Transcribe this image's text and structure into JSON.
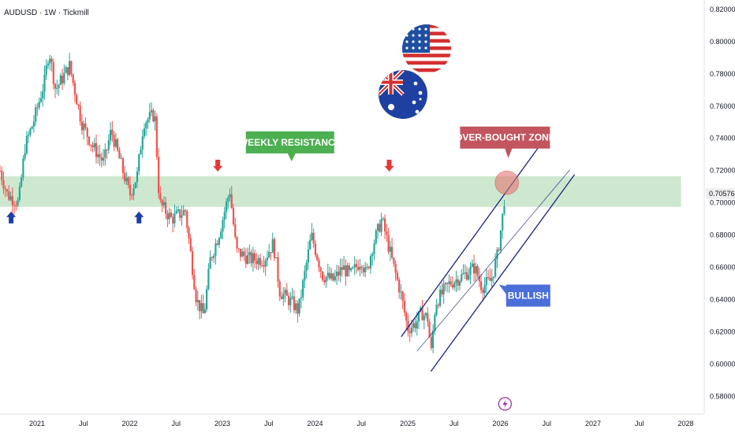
{
  "header": {
    "symbol_title": "AUDUSD · 1W · Tickmill"
  },
  "colors": {
    "up": "#26a69a",
    "down": "#ef5350",
    "zone_fill": "#a5d6a7",
    "zone_text": "#ffffff",
    "channel_line": "#1a237e",
    "resistance_callout": "#4caf50",
    "overbought_callout": "#c2555f",
    "overbought_circle": "#e57373",
    "bullish_callout": "#4a6fd8",
    "arrow_up": "#1a3fa8",
    "arrow_down": "#e53935",
    "price_badge": "#eeeeee",
    "icon_purple": "#9c27b0"
  },
  "icons": {
    "flags": [
      "us-flag-icon",
      "australia-flag-icon"
    ],
    "event": "lightning-event-icon",
    "up_arrow": "blue-up-arrow-icon",
    "down_arrow": "red-down-arrow-icon"
  },
  "chart_data": {
    "type": "candlestick",
    "timeframe": "1W",
    "title": "AUDUSD · 1W · Tickmill",
    "x_axis": {
      "range": [
        2020.6,
        2028.2
      ],
      "tick_labels": [
        {
          "label": "2021",
          "t": 2021.0
        },
        {
          "label": "Jul",
          "t": 2021.5
        },
        {
          "label": "2022",
          "t": 2022.0
        },
        {
          "label": "Jul",
          "t": 2022.5
        },
        {
          "label": "2023",
          "t": 2023.0
        },
        {
          "label": "Jul",
          "t": 2023.5
        },
        {
          "label": "2024",
          "t": 2024.0
        },
        {
          "label": "Jul",
          "t": 2024.5
        },
        {
          "label": "2025",
          "t": 2025.0
        },
        {
          "label": "Jul",
          "t": 2025.5
        },
        {
          "label": "2026",
          "t": 2026.0
        },
        {
          "label": "Jul",
          "t": 2026.5
        },
        {
          "label": "2027",
          "t": 2027.0
        },
        {
          "label": "Jul",
          "t": 2027.5
        },
        {
          "label": "2028",
          "t": 2028.0
        }
      ]
    },
    "y_axis": {
      "range": [
        0.569,
        0.8258
      ],
      "tick_labels": [
        "0.58000",
        "0.60000",
        "0.62000",
        "0.64000",
        "0.66000",
        "0.68000",
        "0.70000",
        "0.72000",
        "0.74000",
        "0.76000",
        "0.78000",
        "0.80000",
        "0.82000"
      ],
      "tick_values": [
        0.58,
        0.6,
        0.62,
        0.64,
        0.66,
        0.68,
        0.7,
        0.72,
        0.74,
        0.76,
        0.78,
        0.8,
        0.82
      ],
      "last_price_label": "0.70576",
      "last_price": 0.70576
    },
    "path_anchors": [
      {
        "t": 2020.6,
        "p": 0.72
      },
      {
        "t": 2020.68,
        "p": 0.705
      },
      {
        "t": 2020.8,
        "p": 0.7
      },
      {
        "t": 2020.87,
        "p": 0.735
      },
      {
        "t": 2020.96,
        "p": 0.75
      },
      {
        "t": 2021.08,
        "p": 0.775
      },
      {
        "t": 2021.13,
        "p": 0.795
      },
      {
        "t": 2021.2,
        "p": 0.77
      },
      {
        "t": 2021.35,
        "p": 0.785
      },
      {
        "t": 2021.48,
        "p": 0.75
      },
      {
        "t": 2021.6,
        "p": 0.735
      },
      {
        "t": 2021.72,
        "p": 0.725
      },
      {
        "t": 2021.8,
        "p": 0.745
      },
      {
        "t": 2021.95,
        "p": 0.715
      },
      {
        "t": 2022.0,
        "p": 0.705
      },
      {
        "t": 2022.08,
        "p": 0.717
      },
      {
        "t": 2022.15,
        "p": 0.75
      },
      {
        "t": 2022.27,
        "p": 0.755
      },
      {
        "t": 2022.32,
        "p": 0.7
      },
      {
        "t": 2022.45,
        "p": 0.69
      },
      {
        "t": 2022.6,
        "p": 0.695
      },
      {
        "t": 2022.72,
        "p": 0.64
      },
      {
        "t": 2022.8,
        "p": 0.63
      },
      {
        "t": 2022.87,
        "p": 0.665
      },
      {
        "t": 2022.96,
        "p": 0.68
      },
      {
        "t": 2023.08,
        "p": 0.708
      },
      {
        "t": 2023.15,
        "p": 0.67
      },
      {
        "t": 2023.3,
        "p": 0.665
      },
      {
        "t": 2023.45,
        "p": 0.665
      },
      {
        "t": 2023.55,
        "p": 0.675
      },
      {
        "t": 2023.62,
        "p": 0.645
      },
      {
        "t": 2023.75,
        "p": 0.638
      },
      {
        "t": 2023.82,
        "p": 0.633
      },
      {
        "t": 2023.96,
        "p": 0.68
      },
      {
        "t": 2024.08,
        "p": 0.655
      },
      {
        "t": 2024.2,
        "p": 0.652
      },
      {
        "t": 2024.3,
        "p": 0.66
      },
      {
        "t": 2024.38,
        "p": 0.655
      },
      {
        "t": 2024.5,
        "p": 0.665
      },
      {
        "t": 2024.55,
        "p": 0.655
      },
      {
        "t": 2024.62,
        "p": 0.673
      },
      {
        "t": 2024.72,
        "p": 0.69
      },
      {
        "t": 2024.85,
        "p": 0.66
      },
      {
        "t": 2024.92,
        "p": 0.645
      },
      {
        "t": 2025.0,
        "p": 0.622
      },
      {
        "t": 2025.08,
        "p": 0.625
      },
      {
        "t": 2025.15,
        "p": 0.632
      },
      {
        "t": 2025.22,
        "p": 0.628
      },
      {
        "t": 2025.25,
        "p": 0.605
      },
      {
        "t": 2025.3,
        "p": 0.638
      },
      {
        "t": 2025.45,
        "p": 0.65
      },
      {
        "t": 2025.6,
        "p": 0.655
      },
      {
        "t": 2025.72,
        "p": 0.66
      },
      {
        "t": 2025.8,
        "p": 0.648
      },
      {
        "t": 2025.9,
        "p": 0.652
      },
      {
        "t": 2025.97,
        "p": 0.668
      },
      {
        "t": 2026.02,
        "p": 0.69
      },
      {
        "t": 2026.05,
        "p": 0.706
      }
    ],
    "resistance_zone": {
      "label": "WEEKLY RESISTANCE",
      "price_low": 0.6975,
      "price_high": 0.7165,
      "t_end": 2027.95
    },
    "channel_lines": [
      {
        "t0": 2024.93,
        "p0": 0.617,
        "t1": 2026.45,
        "p1": 0.7375
      },
      {
        "t0": 2025.1,
        "p0": 0.608,
        "t1": 2026.75,
        "p1": 0.7205
      },
      {
        "t0": 2025.25,
        "p0": 0.5955,
        "t1": 2026.8,
        "p1": 0.7175
      }
    ],
    "annotations": {
      "weekly_resistance": {
        "label": "WEEKLY RESISTANCE"
      },
      "over_bought_zone": {
        "label": "OVER-BOUGHT ZONE"
      },
      "bullish": {
        "label": "BULLISH"
      }
    },
    "markers": {
      "up_arrows": [
        {
          "t": 2020.72
        },
        {
          "t": 2022.1
        }
      ],
      "down_arrows": [
        {
          "t": 2022.95
        },
        {
          "t": 2024.8
        }
      ]
    }
  }
}
